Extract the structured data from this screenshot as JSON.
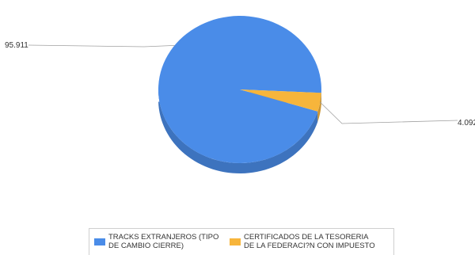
{
  "chart_data": {
    "type": "pie",
    "three_d": true,
    "slices": [
      {
        "name": "TRACKS EXTRANJEROS (TIPO\nDE CAMBIO CIERRE)",
        "value": 95.911,
        "label": "95.911",
        "color": "#4a8ce8"
      },
      {
        "name": "CERTIFICADOS DE LA TESORERIA\nDE LA FEDERACI?N CON IMPUESTO",
        "value": 4.092,
        "label": "4.092",
        "color": "#f7b53b"
      }
    ],
    "legend_position": "bottom"
  }
}
